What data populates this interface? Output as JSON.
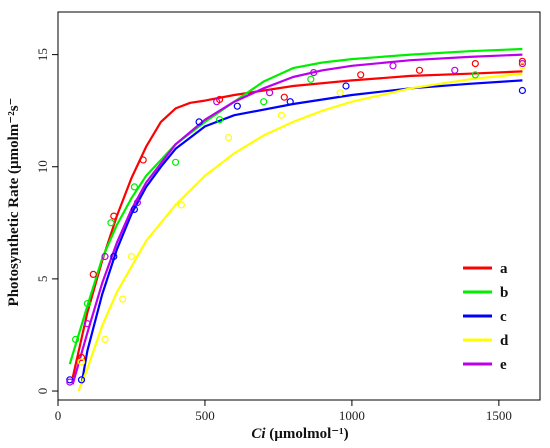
{
  "chart_data": {
    "type": "scatter",
    "title": "",
    "xlabel_italic": "Ci",
    "xlabel_rest": " (µmolmol⁻¹)",
    "ylabel": "Photosynthetic Rate (µmolm⁻²s⁻",
    "xlim": [
      0,
      1640
    ],
    "ylim": [
      -0.4,
      16.9
    ],
    "xticks": [
      0,
      500,
      1000,
      1500
    ],
    "yticks": [
      0,
      5,
      10,
      15
    ],
    "grid": false,
    "legend_position": "bottom-right",
    "series": [
      {
        "name": "a",
        "color": "#ff0000",
        "points": [
          [
            80,
            1.5
          ],
          [
            120,
            5.2
          ],
          [
            190,
            7.8
          ],
          [
            290,
            10.3
          ],
          [
            550,
            13.0
          ],
          [
            770,
            13.1
          ],
          [
            1030,
            14.1
          ],
          [
            1230,
            14.3
          ],
          [
            1420,
            14.6
          ],
          [
            1580,
            14.7
          ]
        ],
        "curve": [
          [
            50,
            0.6
          ],
          [
            100,
            3.5
          ],
          [
            150,
            5.8
          ],
          [
            200,
            7.8
          ],
          [
            250,
            9.5
          ],
          [
            300,
            10.9
          ],
          [
            350,
            12.0
          ],
          [
            400,
            12.6
          ],
          [
            450,
            12.85
          ],
          [
            500,
            12.95
          ],
          [
            600,
            13.2
          ],
          [
            800,
            13.6
          ],
          [
            1000,
            13.85
          ],
          [
            1200,
            14.05
          ],
          [
            1400,
            14.15
          ],
          [
            1580,
            14.25
          ]
        ]
      },
      {
        "name": "b",
        "color": "#00ee00",
        "points": [
          [
            60,
            2.3
          ],
          [
            100,
            3.9
          ],
          [
            180,
            7.5
          ],
          [
            260,
            9.1
          ],
          [
            400,
            10.2
          ],
          [
            550,
            12.1
          ],
          [
            700,
            12.9
          ],
          [
            860,
            13.9
          ],
          [
            1420,
            14.1
          ]
        ],
        "curve": [
          [
            40,
            1.2
          ],
          [
            100,
            3.8
          ],
          [
            150,
            5.9
          ],
          [
            200,
            7.4
          ],
          [
            250,
            8.6
          ],
          [
            300,
            9.6
          ],
          [
            400,
            11.0
          ],
          [
            500,
            12.0
          ],
          [
            600,
            12.9
          ],
          [
            700,
            13.8
          ],
          [
            800,
            14.4
          ],
          [
            900,
            14.65
          ],
          [
            1000,
            14.8
          ],
          [
            1200,
            15.0
          ],
          [
            1400,
            15.15
          ],
          [
            1580,
            15.25
          ]
        ]
      },
      {
        "name": "c",
        "color": "#0000ff",
        "points": [
          [
            40,
            0.5
          ],
          [
            80,
            0.5
          ],
          [
            190,
            6.0
          ],
          [
            260,
            8.1
          ],
          [
            480,
            12.0
          ],
          [
            610,
            12.7
          ],
          [
            790,
            12.9
          ],
          [
            980,
            13.6
          ],
          [
            1580,
            13.4
          ]
        ],
        "curve": [
          [
            80,
            0.3
          ],
          [
            100,
            1.8
          ],
          [
            150,
            4.3
          ],
          [
            200,
            6.3
          ],
          [
            250,
            7.9
          ],
          [
            300,
            9.1
          ],
          [
            350,
            10.0
          ],
          [
            400,
            10.8
          ],
          [
            500,
            11.8
          ],
          [
            600,
            12.3
          ],
          [
            800,
            12.8
          ],
          [
            1000,
            13.2
          ],
          [
            1200,
            13.5
          ],
          [
            1400,
            13.7
          ],
          [
            1580,
            13.85
          ]
        ]
      },
      {
        "name": "d",
        "color": "#ffff00",
        "points": [
          [
            80,
            1.3
          ],
          [
            160,
            2.3
          ],
          [
            220,
            4.1
          ],
          [
            250,
            6.0
          ],
          [
            420,
            8.3
          ],
          [
            580,
            11.3
          ],
          [
            760,
            12.3
          ],
          [
            960,
            13.3
          ],
          [
            1580,
            14.5
          ]
        ],
        "curve": [
          [
            70,
            0.0
          ],
          [
            100,
            1.0
          ],
          [
            150,
            2.9
          ],
          [
            200,
            4.4
          ],
          [
            300,
            6.7
          ],
          [
            400,
            8.3
          ],
          [
            500,
            9.6
          ],
          [
            600,
            10.6
          ],
          [
            700,
            11.4
          ],
          [
            800,
            12.0
          ],
          [
            900,
            12.5
          ],
          [
            1000,
            12.9
          ],
          [
            1200,
            13.5
          ],
          [
            1400,
            13.9
          ],
          [
            1580,
            14.15
          ]
        ]
      },
      {
        "name": "e",
        "color": "#bb00ee",
        "points": [
          [
            40,
            0.4
          ],
          [
            100,
            3.0
          ],
          [
            160,
            6.0
          ],
          [
            270,
            8.4
          ],
          [
            540,
            12.9
          ],
          [
            720,
            13.3
          ],
          [
            870,
            14.2
          ],
          [
            1140,
            14.5
          ],
          [
            1350,
            14.3
          ],
          [
            1580,
            14.6
          ]
        ],
        "curve": [
          [
            50,
            0.3
          ],
          [
            100,
            2.6
          ],
          [
            150,
            4.8
          ],
          [
            200,
            6.6
          ],
          [
            250,
            8.1
          ],
          [
            300,
            9.3
          ],
          [
            400,
            11.0
          ],
          [
            500,
            12.1
          ],
          [
            600,
            12.9
          ],
          [
            700,
            13.5
          ],
          [
            800,
            14.0
          ],
          [
            900,
            14.3
          ],
          [
            1000,
            14.5
          ],
          [
            1200,
            14.75
          ],
          [
            1400,
            14.9
          ],
          [
            1580,
            15.0
          ]
        ]
      }
    ]
  }
}
